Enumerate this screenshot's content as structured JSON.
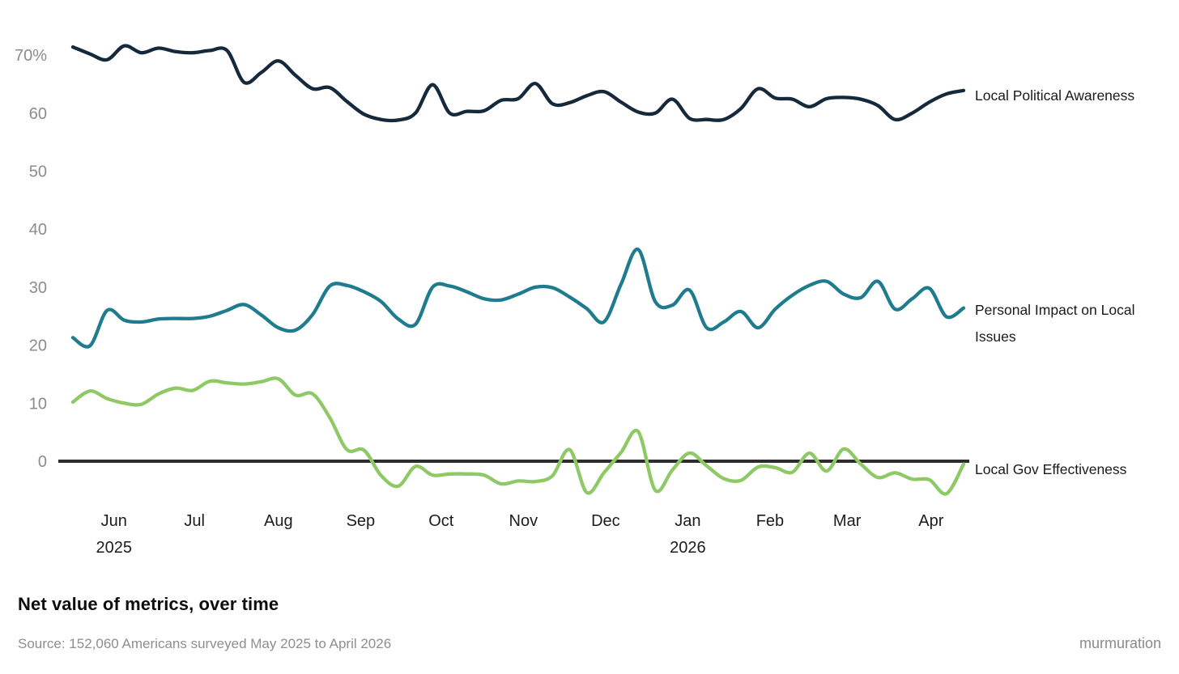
{
  "page": {
    "title": "Net value of metrics, over time",
    "source": "Source: 152,060 Americans surveyed May 2025 to April 2026",
    "brand": "murmuration"
  },
  "chart_data": {
    "type": "line",
    "title": "Net value of metrics, over time",
    "x_unit": "weekly samples, mid-May 2025 to late April 2026",
    "ylim": [
      -8,
      75
    ],
    "grid": "none",
    "legend_position": "right-of-line-direct-labels",
    "zero_line": {
      "value": 0,
      "color": "#2d2d2d"
    },
    "y_axis": {
      "ticks": [
        {
          "label": "70%",
          "value": 70
        },
        {
          "label": "60",
          "value": 60
        },
        {
          "label": "50",
          "value": 50
        },
        {
          "label": "40",
          "value": 40
        },
        {
          "label": "30",
          "value": 30
        },
        {
          "label": "20",
          "value": 20
        },
        {
          "label": "10",
          "value": 10
        },
        {
          "label": "0",
          "value": 0
        }
      ]
    },
    "x_axis": {
      "ticks": [
        {
          "label": "Jun",
          "week": 2.4,
          "year": "2025"
        },
        {
          "label": "Jul",
          "week": 7.1
        },
        {
          "label": "Aug",
          "week": 12.0
        },
        {
          "label": "Sep",
          "week": 16.8
        },
        {
          "label": "Oct",
          "week": 21.5
        },
        {
          "label": "Nov",
          "week": 26.3
        },
        {
          "label": "Dec",
          "week": 31.1
        },
        {
          "label": "Jan",
          "week": 35.9,
          "year": "2026"
        },
        {
          "label": "Feb",
          "week": 40.7
        },
        {
          "label": "Mar",
          "week": 45.2
        },
        {
          "label": "Apr",
          "week": 50.1
        }
      ]
    },
    "series": [
      {
        "label": "Local Political Awareness",
        "color": "#15293c",
        "values": [
          71.4,
          70.2,
          69.2,
          71.6,
          70.4,
          71.2,
          70.6,
          70.4,
          70.8,
          70.8,
          65.3,
          67.0,
          69.0,
          66.5,
          64.2,
          64.4,
          62.0,
          59.8,
          58.9,
          58.8,
          60.0,
          64.9,
          60.0,
          60.3,
          60.4,
          62.2,
          62.5,
          65.1,
          61.6,
          61.8,
          63.0,
          63.7,
          61.9,
          60.2,
          60.0,
          62.4,
          59.1,
          58.9,
          58.9,
          60.8,
          64.2,
          62.6,
          62.4,
          61.1,
          62.5,
          62.7,
          62.4,
          61.3,
          58.9,
          60.0,
          61.9,
          63.3,
          63.9
        ]
      },
      {
        "label": "Personal Impact on Local Issues",
        "color": "#1f7b8e",
        "values": [
          21.3,
          19.9,
          26.0,
          24.3,
          24.0,
          24.5,
          24.6,
          24.6,
          25.0,
          26.0,
          27.0,
          25.2,
          23.0,
          22.6,
          25.3,
          30.2,
          30.3,
          29.2,
          27.5,
          24.5,
          23.6,
          30.0,
          30.2,
          29.2,
          28.0,
          27.8,
          28.8,
          30.0,
          29.9,
          28.3,
          26.3,
          24.0,
          30.5,
          36.5,
          27.5,
          26.9,
          29.5,
          23.0,
          24.0,
          25.8,
          23.0,
          26.2,
          28.6,
          30.3,
          31.0,
          28.8,
          28.2,
          31.0,
          26.2,
          28.0,
          29.8,
          24.9,
          26.4
        ]
      },
      {
        "label": "Local Gov Effectiveness",
        "color": "#8fc965",
        "values": [
          10.2,
          12.1,
          10.8,
          10.0,
          9.8,
          11.6,
          12.6,
          12.2,
          13.8,
          13.5,
          13.3,
          13.7,
          14.2,
          11.4,
          11.6,
          7.5,
          2.0,
          1.9,
          -2.5,
          -4.3,
          -0.9,
          -2.4,
          -2.2,
          -2.2,
          -2.4,
          -3.9,
          -3.4,
          -3.5,
          -2.5,
          2.0,
          -5.4,
          -2.0,
          1.5,
          5.1,
          -5.0,
          -1.5,
          1.4,
          -0.8,
          -3.0,
          -3.3,
          -1.0,
          -1.1,
          -1.9,
          1.4,
          -1.7,
          2.1,
          -0.5,
          -2.8,
          -2.0,
          -3.1,
          -3.2,
          -5.6,
          -0.5
        ]
      }
    ]
  }
}
